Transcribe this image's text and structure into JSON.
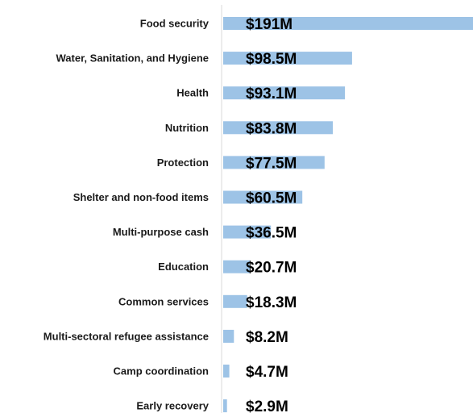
{
  "chart_data": {
    "type": "bar",
    "orientation": "horizontal",
    "categories": [
      "Food security",
      "Water, Sanitation, and Hygiene",
      "Health",
      "Nutrition",
      "Protection",
      "Shelter and non-food items",
      "Multi-purpose cash",
      "Education",
      "Common services",
      "Multi-sectoral refugee assistance",
      "Camp coordination",
      "Early recovery"
    ],
    "values": [
      191,
      98.5,
      93.1,
      83.8,
      77.5,
      60.5,
      36.5,
      20.7,
      18.3,
      8.2,
      4.7,
      2.9
    ],
    "value_labels": [
      "$191M",
      "$98.5M",
      "$93.1M",
      "$83.8M",
      "$77.5M",
      "$60.5M",
      "$36.5M",
      "$20.7M",
      "$18.3M",
      "$8.2M",
      "$4.7M",
      "$2.9M"
    ],
    "unit": "USD millions",
    "xlim": [
      0,
      191
    ],
    "grid": false,
    "legend": "none",
    "bar_color": "#9dc3e6"
  }
}
